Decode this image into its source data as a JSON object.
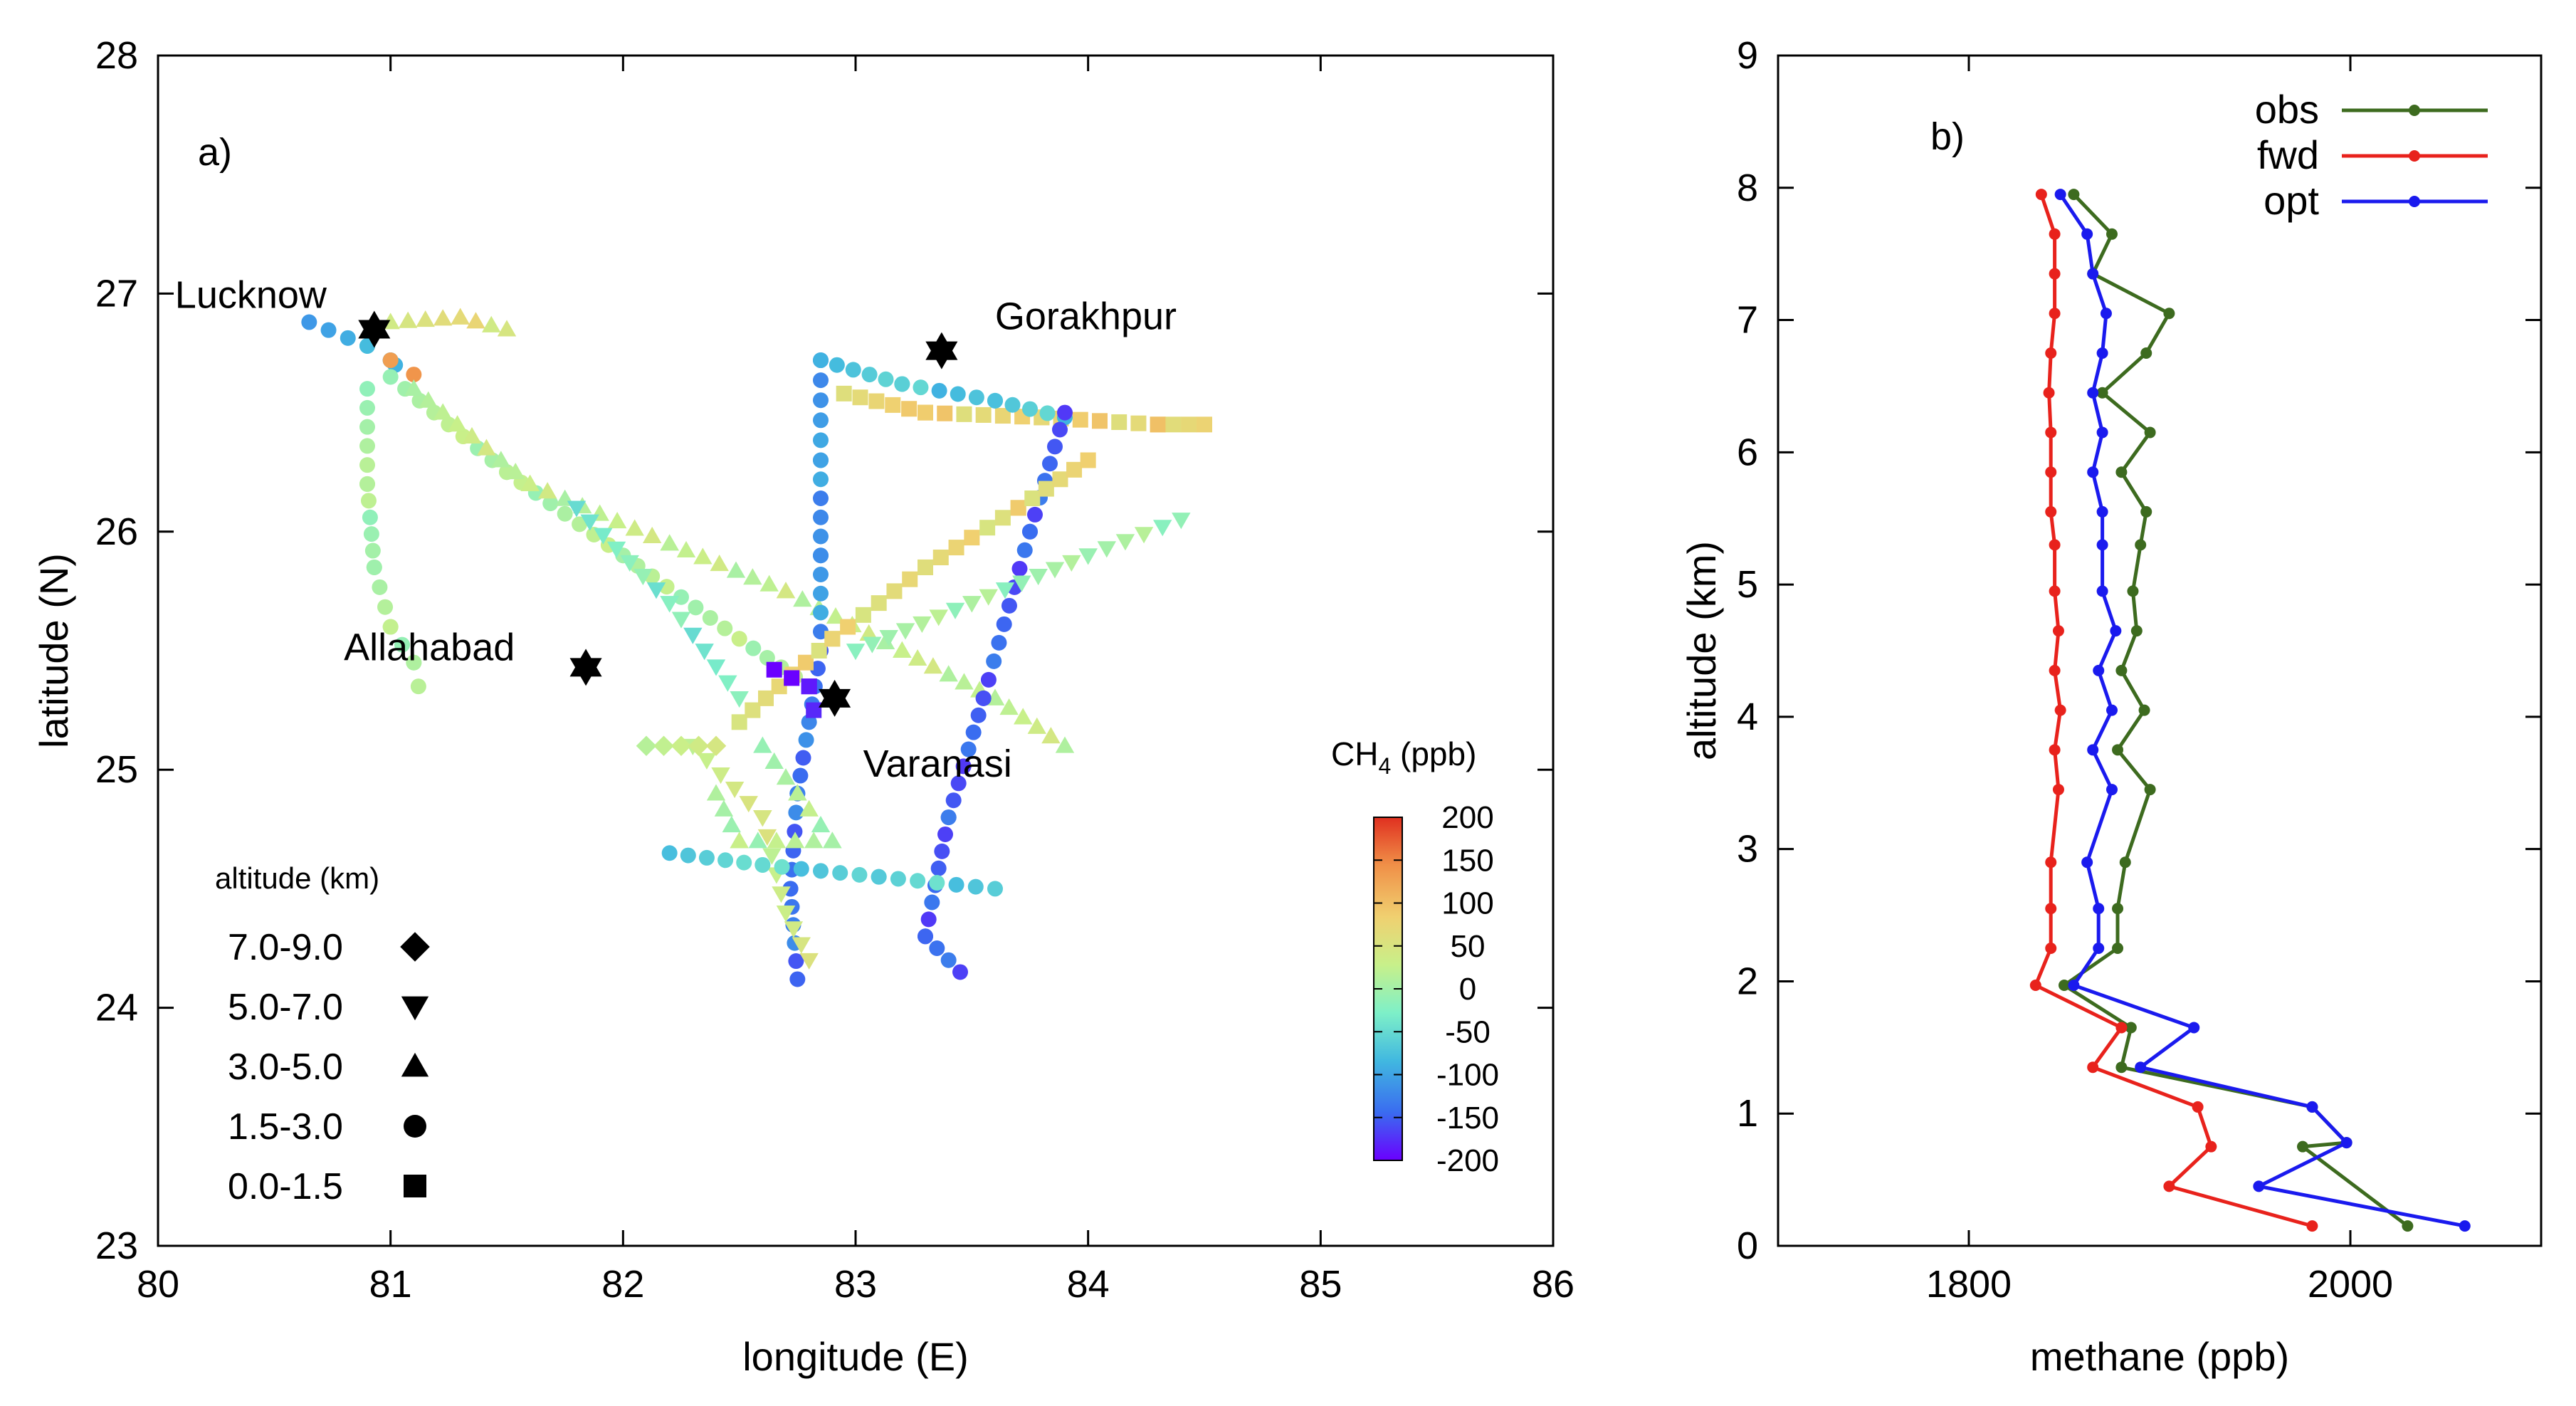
{
  "chart_data": [
    {
      "panel": "a)",
      "type": "scatter",
      "xlabel": "longitude (E)",
      "ylabel": "latitude (N)",
      "xlim": [
        80,
        86
      ],
      "ylim": [
        23,
        28
      ],
      "xticks": [
        "80",
        "81",
        "82",
        "83",
        "84",
        "85",
        "86"
      ],
      "yticks": [
        "23",
        "24",
        "25",
        "26",
        "27",
        "28"
      ],
      "colorbar": {
        "label_main": "CH",
        "label_sub": "4",
        "label_unit": " (ppb)",
        "range": [
          -200,
          200
        ],
        "ticks": [
          "200",
          "150",
          "100",
          "50",
          "0",
          "-50",
          "-100",
          "-150",
          "-200"
        ],
        "colors": [
          "#6a00ff",
          "#3a6cf0",
          "#41b8e0",
          "#7ef0c8",
          "#c8f08a",
          "#f0d070",
          "#f09048",
          "#e03020"
        ]
      },
      "altitude_legend": {
        "title": "altitude (km)",
        "entries": [
          {
            "label": "7.0-9.0",
            "marker": "diamond"
          },
          {
            "label": "5.0-7.0",
            "marker": "triangle-down"
          },
          {
            "label": "3.0-5.0",
            "marker": "triangle-up"
          },
          {
            "label": "1.5-3.0",
            "marker": "circle"
          },
          {
            "label": "0.0-1.5",
            "marker": "square"
          }
        ]
      },
      "cities": [
        {
          "name": "Lucknow",
          "lon": 80.93,
          "lat": 26.85
        },
        {
          "name": "Gorakhpur",
          "lon": 83.37,
          "lat": 26.76
        },
        {
          "name": "Allahabad",
          "lon": 81.84,
          "lat": 25.43
        },
        {
          "name": "Varanasi",
          "lon": 82.91,
          "lat": 25.3
        }
      ],
      "tracks": [
        {
          "marker": "circle",
          "value": -90,
          "points": [
            [
              80.65,
              26.88
            ],
            [
              80.9,
              26.78
            ],
            [
              81.0,
              26.72
            ],
            [
              81.02,
              26.7
            ]
          ]
        },
        {
          "marker": "circle",
          "value": 150,
          "points": [
            [
              81.0,
              26.72
            ],
            [
              81.1,
              26.66
            ]
          ]
        },
        {
          "marker": "circle",
          "value": 5,
          "points": [
            [
              80.9,
              26.6
            ],
            [
              80.9,
              26.2
            ],
            [
              80.93,
              25.85
            ],
            [
              81.0,
              25.6
            ],
            [
              81.1,
              25.45
            ],
            [
              81.12,
              25.35
            ]
          ]
        },
        {
          "marker": "circle",
          "value": 10,
          "points": [
            [
              81.0,
              26.65
            ],
            [
              81.5,
              26.25
            ],
            [
              82.0,
              25.9
            ],
            [
              82.5,
              25.55
            ],
            [
              82.8,
              25.35
            ]
          ]
        },
        {
          "marker": "triangle-up",
          "value": 25,
          "points": [
            [
              81.1,
              26.6
            ],
            [
              81.6,
              26.2
            ],
            [
              82.2,
              25.95
            ],
            [
              82.7,
              25.75
            ],
            [
              83.2,
              25.5
            ],
            [
              83.6,
              25.3
            ],
            [
              83.9,
              25.1
            ]
          ]
        },
        {
          "marker": "triangle-up",
          "value": 60,
          "points": [
            [
              81.0,
              26.88
            ],
            [
              81.3,
              26.9
            ],
            [
              81.5,
              26.85
            ]
          ]
        },
        {
          "marker": "circle",
          "value": -110,
          "points": [
            [
              82.85,
              26.72
            ],
            [
              82.85,
              26.3
            ],
            [
              82.85,
              25.9
            ],
            [
              82.85,
              25.5
            ]
          ]
        },
        {
          "marker": "circle",
          "value": -135,
          "points": [
            [
              82.85,
              25.5
            ],
            [
              82.75,
              24.9
            ],
            [
              82.72,
              24.5
            ],
            [
              82.75,
              24.12
            ]
          ]
        },
        {
          "marker": "square",
          "value": 80,
          "points": [
            [
              82.95,
              26.58
            ],
            [
              83.3,
              26.5
            ],
            [
              83.8,
              26.48
            ],
            [
              84.3,
              26.45
            ],
            [
              84.5,
              26.45
            ]
          ]
        },
        {
          "marker": "circle",
          "value": -70,
          "points": [
            [
              82.85,
              26.72
            ],
            [
              83.2,
              26.62
            ],
            [
              83.6,
              26.55
            ],
            [
              83.9,
              26.48
            ]
          ]
        },
        {
          "marker": "circle",
          "value": -150,
          "points": [
            [
              83.9,
              26.5
            ],
            [
              83.75,
              26.0
            ],
            [
              83.55,
              25.3
            ],
            [
              83.4,
              24.8
            ],
            [
              83.3,
              24.3
            ],
            [
              83.45,
              24.15
            ]
          ]
        },
        {
          "marker": "square",
          "value": 70,
          "points": [
            [
              82.5,
              25.2
            ],
            [
              82.9,
              25.55
            ],
            [
              83.3,
              25.85
            ],
            [
              83.7,
              26.1
            ],
            [
              84.0,
              26.3
            ]
          ]
        },
        {
          "marker": "triangle-down",
          "value": 0,
          "points": [
            [
              83.0,
              25.5
            ],
            [
              83.5,
              25.7
            ],
            [
              84.0,
              25.9
            ],
            [
              84.4,
              26.05
            ]
          ]
        },
        {
          "marker": "triangle-down",
          "value": 40,
          "points": [
            [
              82.3,
              25.1
            ],
            [
              82.6,
              24.8
            ],
            [
              82.7,
              24.4
            ],
            [
              82.8,
              24.2
            ]
          ]
        },
        {
          "marker": "circle",
          "value": -60,
          "points": [
            [
              82.2,
              24.65
            ],
            [
              82.6,
              24.6
            ],
            [
              83.1,
              24.55
            ],
            [
              83.6,
              24.5
            ]
          ]
        },
        {
          "marker": "diamond",
          "value": 35,
          "points": [
            [
              82.1,
              25.1
            ],
            [
              82.4,
              25.1
            ]
          ]
        },
        {
          "marker": "square",
          "value": -195,
          "points": [
            [
              82.65,
              25.42
            ],
            [
              82.8,
              25.35
            ],
            [
              82.82,
              25.25
            ]
          ]
        },
        {
          "marker": "triangle-up",
          "value": 10,
          "points": [
            [
              82.6,
              25.1
            ],
            [
              82.75,
              24.9
            ],
            [
              82.9,
              24.7
            ],
            [
              82.5,
              24.7
            ],
            [
              82.4,
              24.9
            ]
          ]
        },
        {
          "marker": "triangle-down",
          "value": -30,
          "points": [
            [
              81.8,
              26.1
            ],
            [
              82.2,
              25.7
            ],
            [
              82.5,
              25.3
            ]
          ]
        }
      ]
    },
    {
      "panel": "b)",
      "type": "line",
      "xlabel": "methane (ppb)",
      "ylabel": "altitude (km)",
      "xlim": [
        1700,
        2100
      ],
      "ylim": [
        0,
        9
      ],
      "xticks": [
        "1800",
        "2000"
      ],
      "yticks": [
        "0",
        "1",
        "2",
        "3",
        "4",
        "5",
        "6",
        "7",
        "8",
        "9"
      ],
      "series": [
        {
          "name": "obs",
          "color": "#3d6b1f",
          "points": [
            [
              2030,
              0.15
            ],
            [
              1975,
              0.75
            ],
            [
              1998,
              0.78
            ],
            [
              1980,
              1.05
            ],
            [
              1880,
              1.35
            ],
            [
              1885,
              1.65
            ],
            [
              1850,
              1.97
            ],
            [
              1878,
              2.25
            ],
            [
              1878,
              2.55
            ],
            [
              1882,
              2.9
            ],
            [
              1895,
              3.45
            ],
            [
              1878,
              3.75
            ],
            [
              1892,
              4.05
            ],
            [
              1880,
              4.35
            ],
            [
              1888,
              4.65
            ],
            [
              1886,
              4.95
            ],
            [
              1890,
              5.3
            ],
            [
              1893,
              5.55
            ],
            [
              1880,
              5.85
            ],
            [
              1895,
              6.15
            ],
            [
              1870,
              6.45
            ],
            [
              1893,
              6.75
            ],
            [
              1905,
              7.05
            ],
            [
              1865,
              7.35
            ],
            [
              1875,
              7.65
            ],
            [
              1855,
              7.95
            ]
          ]
        },
        {
          "name": "fwd",
          "color": "#e8221c",
          "points": [
            [
              1980,
              0.15
            ],
            [
              1905,
              0.45
            ],
            [
              1927,
              0.75
            ],
            [
              1920,
              1.05
            ],
            [
              1865,
              1.35
            ],
            [
              1880,
              1.65
            ],
            [
              1835,
              1.97
            ],
            [
              1843,
              2.25
            ],
            [
              1843,
              2.55
            ],
            [
              1843,
              2.9
            ],
            [
              1847,
              3.45
            ],
            [
              1845,
              3.75
            ],
            [
              1848,
              4.05
            ],
            [
              1845,
              4.35
            ],
            [
              1847,
              4.65
            ],
            [
              1845,
              4.95
            ],
            [
              1845,
              5.3
            ],
            [
              1843,
              5.55
            ],
            [
              1843,
              5.85
            ],
            [
              1843,
              6.15
            ],
            [
              1842,
              6.45
            ],
            [
              1843,
              6.75
            ],
            [
              1845,
              7.05
            ],
            [
              1845,
              7.35
            ],
            [
              1845,
              7.65
            ],
            [
              1838,
              7.95
            ]
          ]
        },
        {
          "name": "opt",
          "color": "#1a1aee",
          "points": [
            [
              2060,
              0.15
            ],
            [
              1952,
              0.45
            ],
            [
              1998,
              0.78
            ],
            [
              1980,
              1.05
            ],
            [
              1890,
              1.35
            ],
            [
              1918,
              1.65
            ],
            [
              1855,
              1.97
            ],
            [
              1868,
              2.25
            ],
            [
              1868,
              2.55
            ],
            [
              1862,
              2.9
            ],
            [
              1875,
              3.45
            ],
            [
              1865,
              3.75
            ],
            [
              1875,
              4.05
            ],
            [
              1868,
              4.35
            ],
            [
              1877,
              4.65
            ],
            [
              1870,
              4.95
            ],
            [
              1870,
              5.3
            ],
            [
              1870,
              5.55
            ],
            [
              1865,
              5.85
            ],
            [
              1870,
              6.15
            ],
            [
              1865,
              6.45
            ],
            [
              1870,
              6.75
            ],
            [
              1872,
              7.05
            ],
            [
              1865,
              7.35
            ],
            [
              1862,
              7.65
            ],
            [
              1848,
              7.95
            ]
          ]
        }
      ]
    }
  ]
}
